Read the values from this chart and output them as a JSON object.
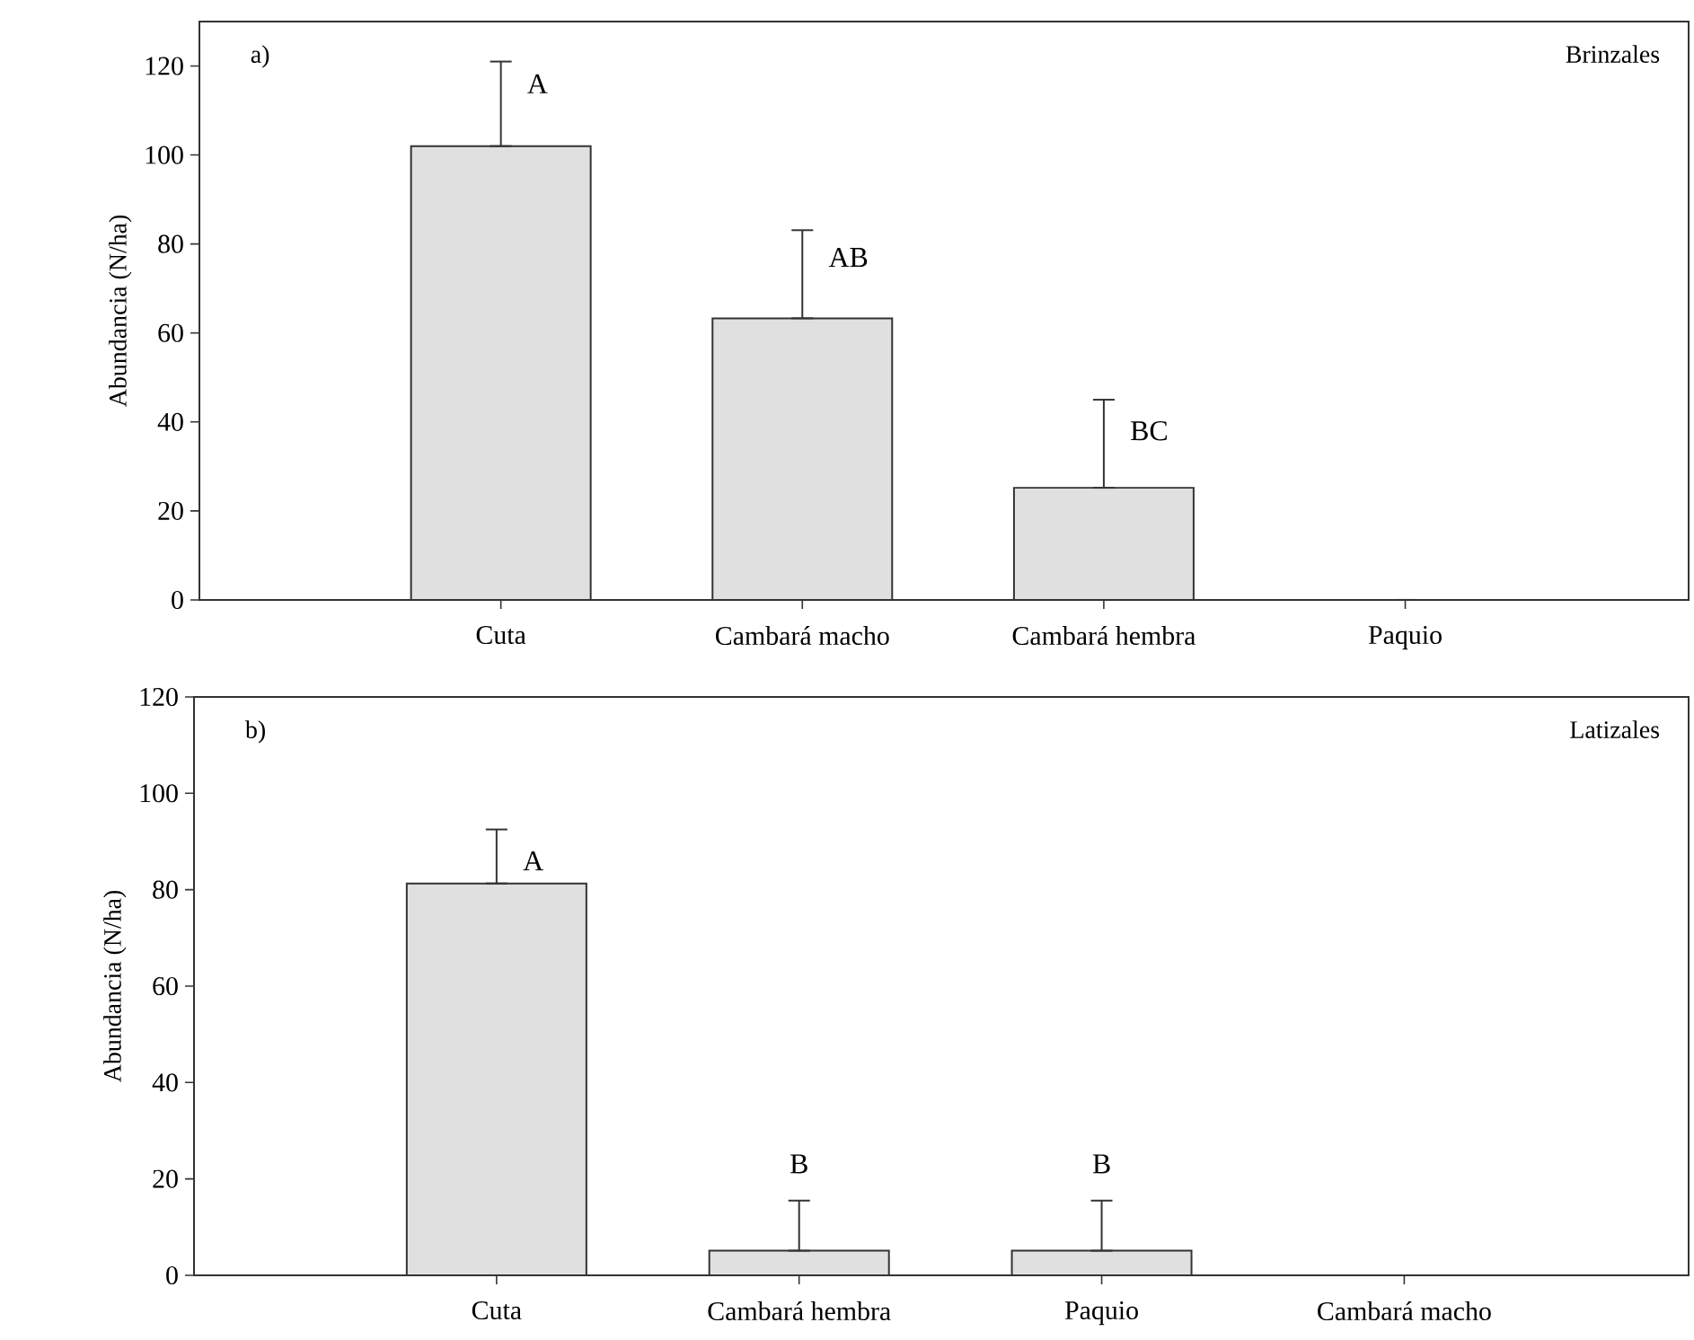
{
  "chart_data": [
    {
      "type": "bar",
      "categories": [
        "Cuta",
        "Cambará macho",
        "Cambará hembra",
        "Paquio"
      ],
      "values": [
        102,
        63.3,
        25.2,
        0
      ],
      "errors": [
        [
          102,
          121
        ],
        [
          63.3,
          83.1
        ],
        [
          25.2,
          45
        ],
        null
      ],
      "color": "#e0e0e0",
      "ylabel": "Abundancia (N/ha)",
      "ylim": [
        0,
        130
      ],
      "yticks": [
        0,
        20,
        40,
        60,
        80,
        100,
        120
      ],
      "annotations": [
        "a)",
        "Brinzales",
        {
          "text": "A",
          "x": "Cuta",
          "y": 116
        },
        {
          "text": "AB",
          "x": "Cambará macho",
          "y": 77
        },
        {
          "text": "BC",
          "x": "Cambará hembra",
          "y": 38
        }
      ]
    },
    {
      "type": "bar",
      "categories": [
        "Cuta",
        "Cambará hembra",
        "Paquio",
        "Cambará macho"
      ],
      "values": [
        81.3,
        5.1,
        5.1,
        0
      ],
      "errors": [
        [
          81.3,
          92.5
        ],
        [
          5.1,
          15.5
        ],
        [
          5.1,
          15.5
        ],
        null
      ],
      "color": "#e0e0e0",
      "ylabel": "Abundancia (N/ha)",
      "ylim": [
        0,
        120
      ],
      "yticks": [
        0,
        20,
        40,
        60,
        80,
        100,
        120
      ],
      "annotations": [
        "b)",
        "Latizales",
        {
          "text": "A",
          "x": "Cuta",
          "y": 86
        },
        {
          "text": "B",
          "x": "Cambará hembra",
          "y": 15.5
        },
        {
          "text": "B",
          "x": "Paquio",
          "y": 15.5
        }
      ]
    }
  ]
}
